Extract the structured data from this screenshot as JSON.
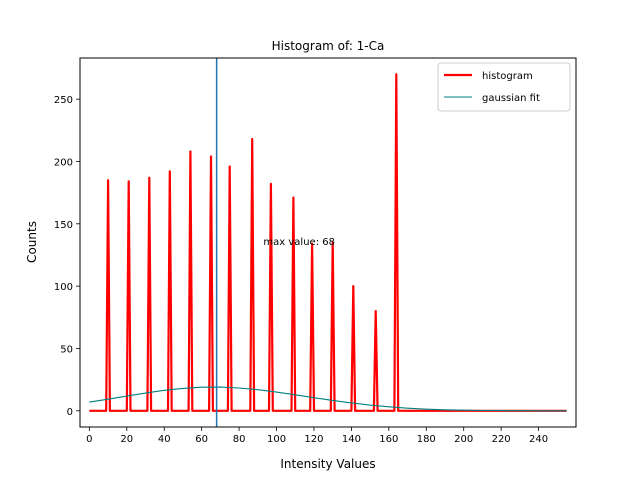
{
  "chart_data": {
    "type": "line",
    "title": "Histogram of: 1-Ca",
    "xlabel": "Intensity Values",
    "ylabel": "Counts",
    "xlim": [
      -5,
      260
    ],
    "ylim": [
      -13,
      283
    ],
    "xticks": [
      0,
      20,
      40,
      60,
      80,
      100,
      120,
      140,
      160,
      180,
      200,
      220,
      240
    ],
    "yticks": [
      0,
      50,
      100,
      150,
      200,
      250
    ],
    "legend_position": "top-right",
    "series": [
      {
        "name": "histogram",
        "color": "#ff0000",
        "x": [
          0,
          9,
          10,
          11,
          20,
          21,
          22,
          31,
          32,
          33,
          42,
          43,
          44,
          53,
          54,
          55,
          64,
          65,
          66,
          74,
          75,
          76,
          86,
          87,
          88,
          96,
          97,
          98,
          108,
          109,
          110,
          118,
          119,
          120,
          129,
          130,
          131,
          140,
          141,
          142,
          152,
          153,
          154,
          163,
          164,
          165,
          255
        ],
        "y": [
          0,
          0,
          185,
          0,
          0,
          184,
          0,
          0,
          187,
          0,
          0,
          192,
          0,
          0,
          208,
          0,
          0,
          204,
          0,
          0,
          196,
          0,
          0,
          218,
          0,
          0,
          182,
          0,
          0,
          171,
          0,
          0,
          134,
          0,
          0,
          135,
          0,
          0,
          100,
          0,
          0,
          80,
          0,
          0,
          270,
          0,
          0
        ]
      },
      {
        "name": "gaussian fit",
        "color": "#008080",
        "x": [
          0,
          10,
          20,
          30,
          40,
          50,
          60,
          70,
          80,
          90,
          100,
          110,
          120,
          130,
          140,
          150,
          160,
          170,
          180,
          190,
          200,
          210,
          220,
          230,
          240,
          255
        ],
        "y": [
          7.0,
          9.3,
          11.8,
          14.2,
          16.4,
          18.0,
          18.9,
          19.0,
          18.3,
          16.9,
          15.0,
          12.8,
          10.5,
          8.3,
          6.3,
          4.6,
          3.2,
          2.1,
          1.3,
          0.8,
          0.45,
          0.25,
          0.12,
          0.06,
          0.03,
          0.0
        ]
      }
    ],
    "vline": {
      "x": 68,
      "color": "#1f77b4"
    },
    "annotation": {
      "text": "max value: 68",
      "x": 93,
      "y": 133
    }
  }
}
